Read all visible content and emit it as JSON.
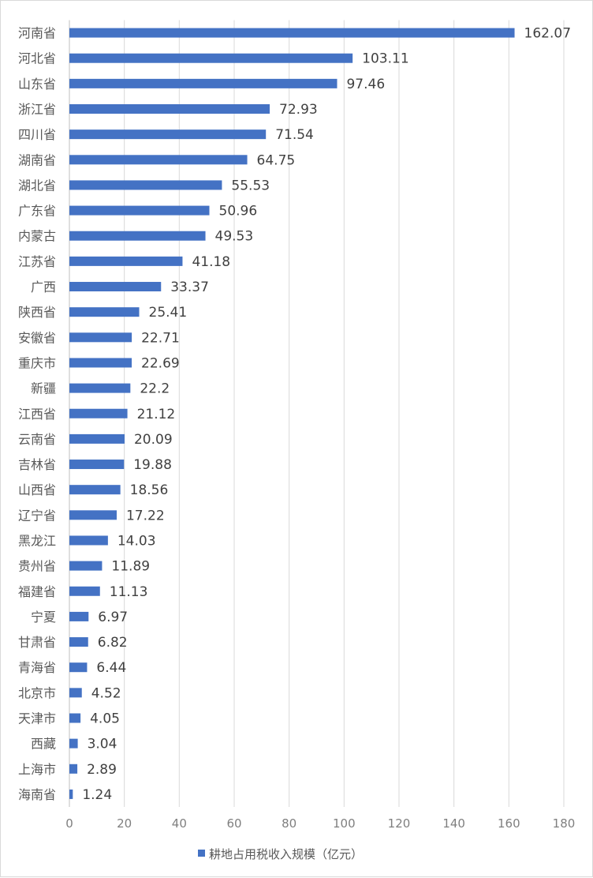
{
  "chart_data": {
    "type": "bar",
    "orientation": "horizontal",
    "categories": [
      "河南省",
      "河北省",
      "山东省",
      "浙江省",
      "四川省",
      "湖南省",
      "湖北省",
      "广东省",
      "内蒙古",
      "江苏省",
      "广西",
      "陕西省",
      "安徽省",
      "重庆市",
      "新疆",
      "江西省",
      "云南省",
      "吉林省",
      "山西省",
      "辽宁省",
      "黑龙江",
      "贵州省",
      "福建省",
      "宁夏",
      "甘肃省",
      "青海省",
      "北京市",
      "天津市",
      "西藏",
      "上海市",
      "海南省"
    ],
    "series": [
      {
        "name": "耕地占用税收入规模（亿元）",
        "color": "#4472c4",
        "values": [
          162.07,
          103.11,
          97.46,
          72.93,
          71.54,
          64.75,
          55.53,
          50.96,
          49.53,
          41.18,
          33.37,
          25.41,
          22.71,
          22.69,
          22.2,
          21.12,
          20.09,
          19.88,
          18.56,
          17.22,
          14.03,
          11.89,
          11.13,
          6.97,
          6.82,
          6.44,
          4.52,
          4.05,
          3.04,
          2.89,
          1.24
        ],
        "labels": [
          "162.07",
          "103.11",
          "97.46",
          "72.93",
          "71.54",
          "64.75",
          "55.53",
          "50.96",
          "49.53",
          "41.18",
          "33.37",
          "25.41",
          "22.71",
          "22.69",
          "22.2",
          "21.12",
          "20.09",
          "19.88",
          "18.56",
          "17.22",
          "14.03",
          "11.89",
          "11.13",
          "6.97",
          "6.82",
          "6.44",
          "4.52",
          "4.05",
          "3.04",
          "2.89",
          "1.24"
        ]
      }
    ],
    "xlim": [
      0,
      180
    ],
    "xticks": [
      "0",
      "20",
      "40",
      "60",
      "80",
      "100",
      "120",
      "140",
      "160",
      "180"
    ],
    "legend": {
      "position": "bottom",
      "label": "耕地占用税收入规模（亿元）"
    },
    "grid": true,
    "title": "",
    "xlabel": "",
    "ylabel": ""
  }
}
